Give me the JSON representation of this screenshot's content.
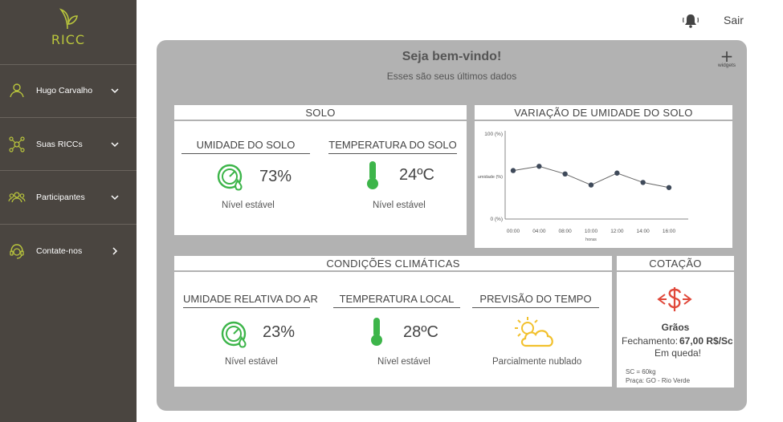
{
  "app": {
    "name": "RICC"
  },
  "sidebar": {
    "items": [
      {
        "label": "Hugo Carvalho",
        "icon": "user-icon"
      },
      {
        "label": "Suas RICCs",
        "icon": "network-icon"
      },
      {
        "label": "Participantes",
        "icon": "group-icon"
      },
      {
        "label": "Contate-nos",
        "icon": "headset-icon"
      }
    ]
  },
  "topbar": {
    "logout_label": "Sair",
    "bell_icon": "bell-icon"
  },
  "main": {
    "title": "Seja bem-vindo!",
    "subtitle": "Esses são seus últimos dados",
    "add_widget": {
      "symbol": "+",
      "label": "widgets"
    }
  },
  "solo": {
    "header": "SOLO",
    "humidity": {
      "title": "UMIDADE DO SOLO",
      "value": "73%",
      "status": "Nível estável"
    },
    "temperature": {
      "title": "TEMPERATURA DO SOLO",
      "value": "24ºC",
      "status": "Nível estável"
    }
  },
  "chart_card": {
    "header": "VARIAÇÃO DE UMIDADE DO SOLO"
  },
  "chart_data": {
    "type": "line",
    "title": "VARIAÇÃO DE UMIDADE DO SOLO",
    "xlabel": "horas",
    "ylabel": "umidade (%)",
    "y_tick_labels": [
      "100 (%)",
      "0 (%)"
    ],
    "ylim": [
      0,
      100
    ],
    "categories": [
      "00:00",
      "04:00",
      "08:00",
      "10:00",
      "12:00",
      "14:00",
      "16:00"
    ],
    "series": [
      {
        "values": [
          57,
          62,
          53,
          40,
          54,
          43,
          37
        ]
      }
    ],
    "colors": {
      "line": "#666666",
      "marker": "#3f4a5a",
      "axis": "#888888"
    },
    "grid": false
  },
  "climate": {
    "header": "CONDIÇÕES CLIMÁTICAS",
    "air_humidity": {
      "title": "UMIDADE RELATIVA DO AR",
      "value": "23%",
      "status": "Nível estável"
    },
    "local_temperature": {
      "title": "TEMPERATURA LOCAL",
      "value": "28ºC",
      "status": "Nível estável"
    },
    "forecast": {
      "title": "PREVISÃO DO TEMPO",
      "status": "Parcialmente nublado"
    }
  },
  "quote": {
    "header": "COTAÇÃO",
    "product": "Grãos",
    "closing_label": "Fechamento:",
    "closing_value": "67,00 R$/Sc",
    "trend": "Em queda!",
    "note_unit": "SC = 60kg",
    "note_place": "Praça: GO - Rio Verde"
  },
  "colors": {
    "sidebar_bg": "#4a4540",
    "accent_green": "#b9c53c",
    "icon_green": "#3db54a",
    "quote_red": "#e0483a",
    "weather_yellow": "#f2c12e",
    "panel_gray": "#b2b2b2"
  }
}
